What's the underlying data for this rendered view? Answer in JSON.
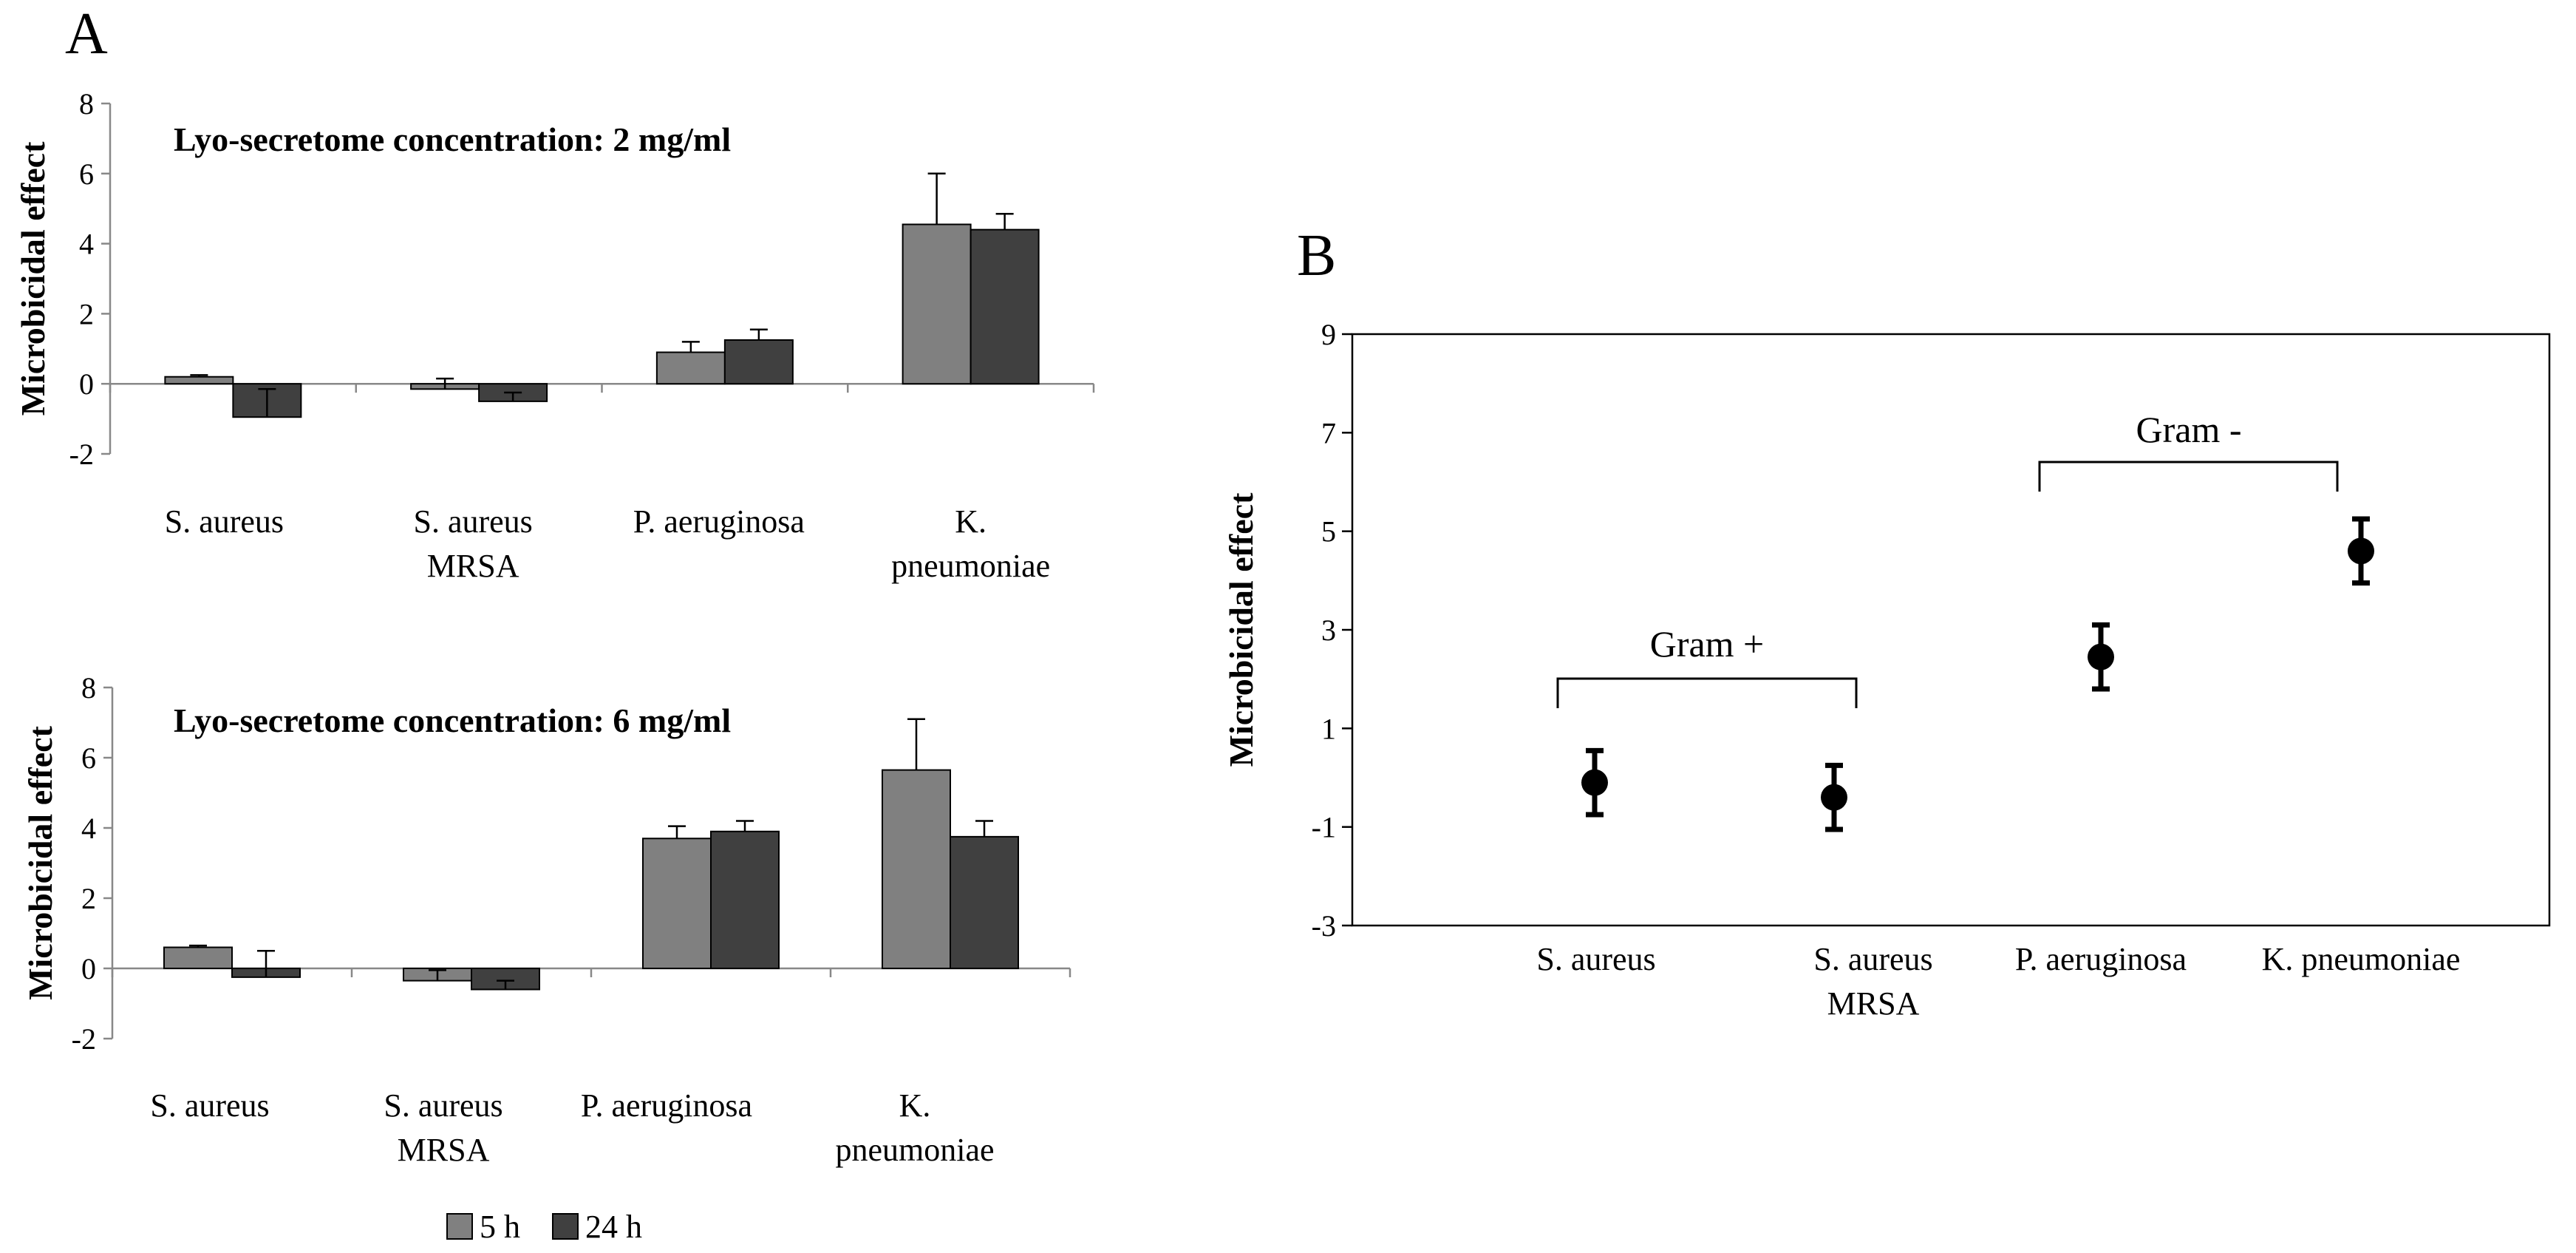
{
  "panel_a_letter": "A",
  "panel_b_letter": "B",
  "chart_data": [
    {
      "type": "bar",
      "title": "Lyo-secretome concentration: 2 mg/ml",
      "ylabel": "Microbicidal effect",
      "xlabel": "",
      "ylim": [
        -2,
        8
      ],
      "yticks": [
        -2,
        0,
        2,
        4,
        6,
        8
      ],
      "categories": [
        [
          "S. aureus"
        ],
        [
          "S. aureus",
          "MRSA"
        ],
        [
          "P. aeruginosa"
        ],
        [
          "K.",
          "pneumoniae"
        ]
      ],
      "series": [
        {
          "name": "5 h",
          "color": "#808080",
          "values": [
            0.2,
            -0.15,
            0.9,
            4.55
          ],
          "errors": [
            0.05,
            0.3,
            0.3,
            1.45
          ]
        },
        {
          "name": "24 h",
          "color": "#404040",
          "values": [
            -0.95,
            -0.5,
            1.25,
            4.4
          ],
          "errors": [
            0.8,
            0.25,
            0.3,
            0.45
          ]
        }
      ]
    },
    {
      "type": "bar",
      "title": "Lyo-secretome concentration: 6 mg/ml",
      "ylabel": "Microbicidal effect",
      "xlabel": "",
      "ylim": [
        -2,
        8
      ],
      "yticks": [
        -2,
        0,
        2,
        4,
        6,
        8
      ],
      "categories": [
        [
          "S. aureus"
        ],
        [
          "S. aureus",
          "MRSA"
        ],
        [
          "P. aeruginosa"
        ],
        [
          "K.",
          "pneumoniae"
        ]
      ],
      "series": [
        {
          "name": "5 h",
          "color": "#808080",
          "values": [
            0.6,
            -0.35,
            3.7,
            5.65
          ],
          "errors": [
            0.05,
            0.3,
            0.35,
            1.45
          ]
        },
        {
          "name": "24 h",
          "color": "#404040",
          "values": [
            -0.25,
            -0.6,
            3.9,
            3.75
          ],
          "errors": [
            0.75,
            0.25,
            0.3,
            0.45
          ]
        }
      ],
      "legend": {
        "position": "bottom",
        "entries": [
          "5 h",
          "24 h"
        ]
      }
    },
    {
      "type": "scatter",
      "title": "",
      "ylabel": "Microbicidal effect",
      "xlabel": "",
      "ylim": [
        -3,
        9
      ],
      "yticks": [
        -3,
        -1,
        1,
        3,
        5,
        7,
        9
      ],
      "categories": [
        [
          "S. aureus"
        ],
        [
          "S. aureus",
          "MRSA"
        ],
        [
          "P. aeruginosa"
        ],
        [
          "K. pneumoniae"
        ]
      ],
      "values": [
        -0.1,
        -0.4,
        2.45,
        4.6
      ],
      "errors": [
        0.65,
        0.65,
        0.65,
        0.65
      ],
      "groups": [
        {
          "label": "Gram +",
          "from": 0,
          "to": 1
        },
        {
          "label": "Gram -",
          "from": 2,
          "to": 3
        }
      ]
    }
  ]
}
